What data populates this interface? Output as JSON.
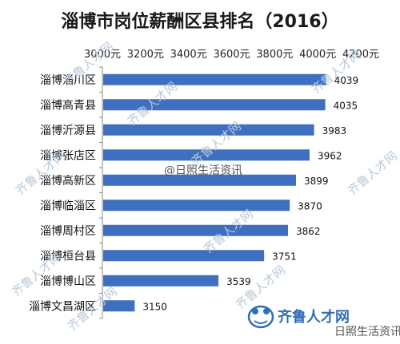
{
  "colors": {
    "bar": "#3f6fc0",
    "axis": "#888888",
    "watermark": "#b9c9da",
    "brand": "#2f6fb5"
  },
  "icons": {
    "brand_logo": "frog-logo-icon"
  },
  "watermarks": {
    "overlay_1": "@日照生活资讯",
    "repeated": "齐鲁人才网",
    "brand": "齐鲁人才网",
    "corner": "日照生活资讯"
  },
  "chart_data": {
    "type": "bar",
    "orientation": "horizontal",
    "title": "淄博市岗位薪酬区县排名（2016）",
    "xlabel": "",
    "ylabel": "",
    "xlim": [
      3000,
      4200
    ],
    "x_ticks": [
      "3000元",
      "3200元",
      "3400元",
      "3600元",
      "3800元",
      "4000元",
      "4200元"
    ],
    "x_axis_position": "top",
    "grid": false,
    "categories": [
      "淄博淄川区",
      "淄博高青县",
      "淄博沂源县",
      "淄博张店区",
      "淄博高新区",
      "淄博临淄区",
      "淄博周村区",
      "淄博桓台县",
      "淄博博山区",
      "淄博文昌湖区"
    ],
    "values": [
      4039,
      4035,
      3983,
      3962,
      3899,
      3870,
      3862,
      3751,
      3539,
      3150
    ],
    "value_labels": [
      "4039",
      "4035",
      "3983",
      "3962",
      "3899",
      "3870",
      "3862",
      "3751",
      "3539",
      "3150"
    ]
  }
}
